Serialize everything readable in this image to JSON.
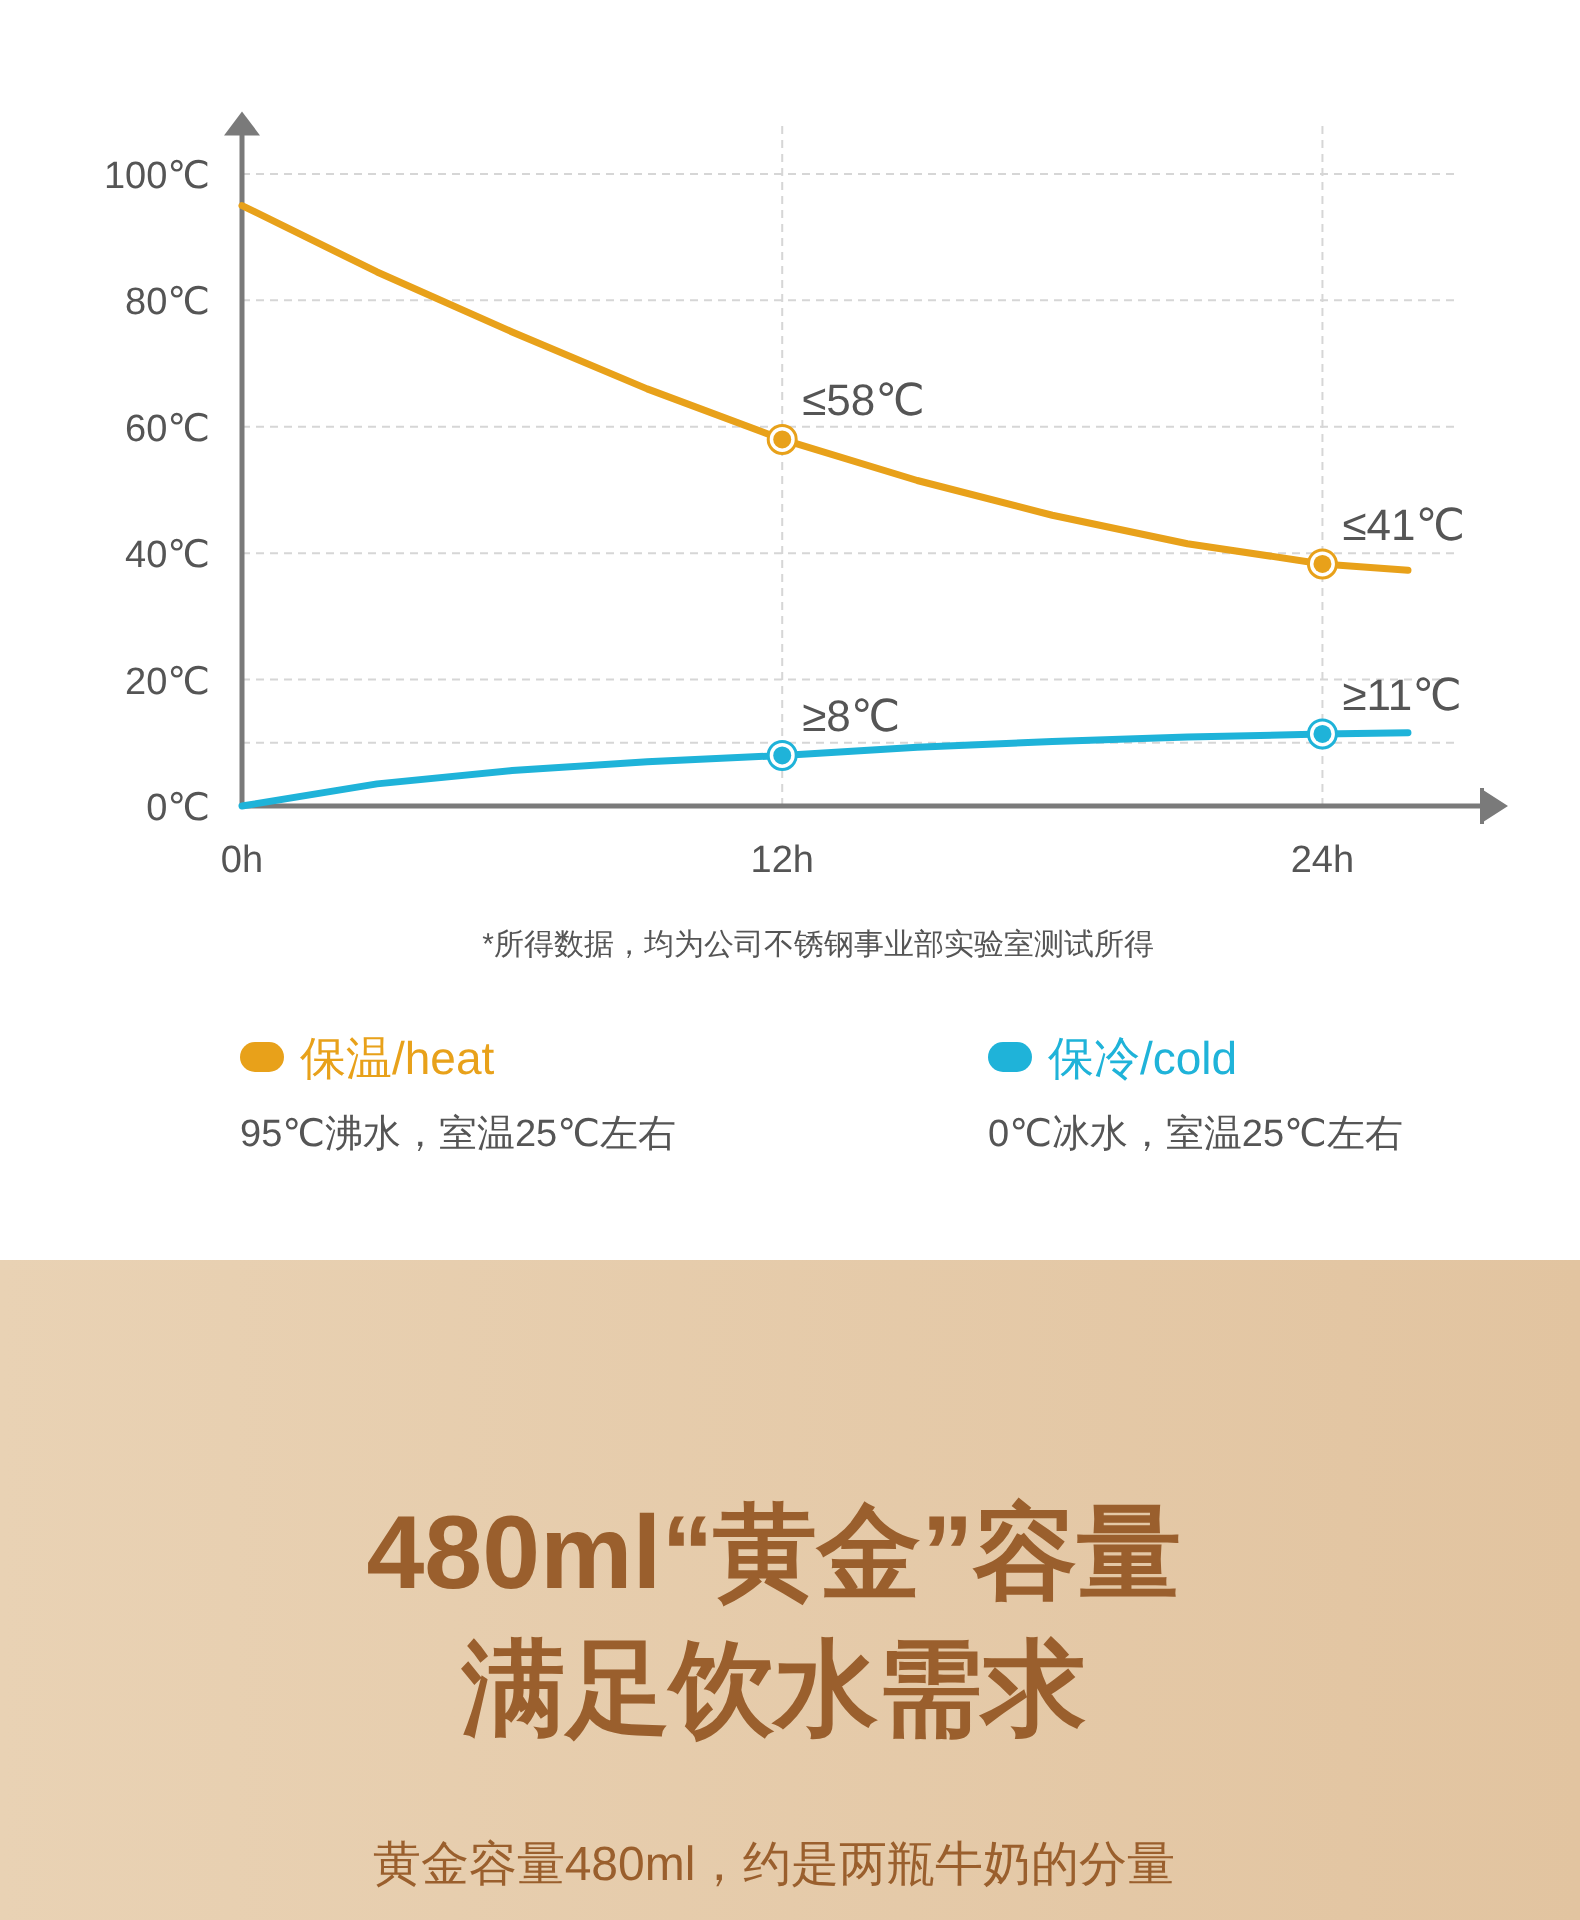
{
  "chart_data": {
    "type": "line",
    "x": [
      0,
      3,
      6,
      9,
      12,
      15,
      18,
      21,
      24,
      25.9
    ],
    "series": [
      {
        "name": "保温/heat",
        "color": "#e8a11a",
        "values": [
          95,
          84.5,
          75,
          66,
          58,
          51.5,
          46,
          41.5,
          38.3,
          37.3
        ]
      },
      {
        "name": "保冷/cold",
        "color": "#1fb3d9",
        "values": [
          0,
          3.5,
          5.6,
          7,
          8,
          9.3,
          10.2,
          10.9,
          11.4,
          11.6
        ]
      },
      {
        "type": "scatter",
        "color": "#e8a11a",
        "values": [
          null,
          null,
          null,
          null,
          58,
          null,
          null,
          null,
          38.3,
          null
        ],
        "value_labels": [
          null,
          null,
          null,
          null,
          "≤58℃",
          null,
          null,
          null,
          "≤41℃",
          null
        ]
      },
      {
        "type": "scatter",
        "color": "#1fb3d9",
        "values": [
          null,
          null,
          null,
          null,
          8,
          null,
          null,
          null,
          11.4,
          null
        ],
        "value_labels": [
          null,
          null,
          null,
          null,
          "≥8℃",
          null,
          null,
          null,
          "≥11℃",
          null
        ]
      }
    ],
    "xlim": [
      0,
      27.5
    ],
    "xticks": [
      {
        "value": 0,
        "label": "0h"
      },
      {
        "value": 12,
        "label": "12h"
      },
      {
        "value": 24,
        "label": "24h"
      }
    ],
    "ylim": [
      0,
      108
    ],
    "yticks": [
      {
        "value": 0,
        "label": "0℃"
      },
      {
        "value": 10,
        "label": null
      },
      {
        "value": 20,
        "label": "20℃"
      },
      {
        "value": 40,
        "label": "40℃"
      },
      {
        "value": 60,
        "label": "60℃"
      },
      {
        "value": 80,
        "label": "80℃"
      },
      {
        "value": 100,
        "label": "100℃"
      }
    ],
    "grid": true,
    "legend": "bottom",
    "annotations": [
      "*所得数据，均为公司不锈钢事业部实验室测试所得",
      "95℃沸水，室温25℃左右",
      "0℃冰水，室温25℃左右",
      "480ml“黄金”容量",
      "满足饮水需求",
      "黄金容量480ml，约是两瓶牛奶的分量"
    ]
  }
}
